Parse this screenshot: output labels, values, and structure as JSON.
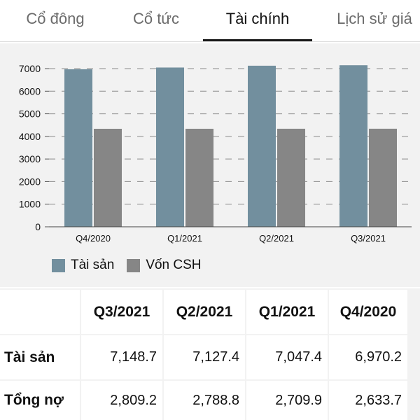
{
  "tabs": [
    {
      "label": "Cổ đông",
      "active": false
    },
    {
      "label": "Cổ tức",
      "active": false
    },
    {
      "label": "Tài chính",
      "active": true
    },
    {
      "label": "Lịch sử giá",
      "active": false
    }
  ],
  "chart_data": {
    "type": "bar",
    "categories": [
      "Q4/2020",
      "Q1/2021",
      "Q2/2021",
      "Q3/2021"
    ],
    "series": [
      {
        "name": "Tài sản",
        "color": "#728f9e",
        "values": [
          6970.2,
          7047.4,
          7127.4,
          7148.7
        ]
      },
      {
        "name": "Vốn CSH",
        "color": "#868686",
        "values": [
          4336.5,
          4337.5,
          4338.6,
          4339.5
        ]
      }
    ],
    "yticks": [
      0,
      1000,
      2000,
      3000,
      4000,
      5000,
      6000,
      7000
    ],
    "ylim": [
      0,
      7500
    ],
    "grid": true,
    "legend_position": "bottom-left"
  },
  "table": {
    "corner": "",
    "columns": [
      "Q3/2021",
      "Q2/2021",
      "Q1/2021",
      "Q4/2020"
    ],
    "rows": [
      {
        "label": "Tài sản",
        "values": [
          "7,148.7",
          "7,127.4",
          "7,047.4",
          "6,970.2"
        ]
      },
      {
        "label": "Tổng nợ",
        "values": [
          "2,809.2",
          "2,788.8",
          "2,709.9",
          "2,633.7"
        ]
      }
    ]
  }
}
